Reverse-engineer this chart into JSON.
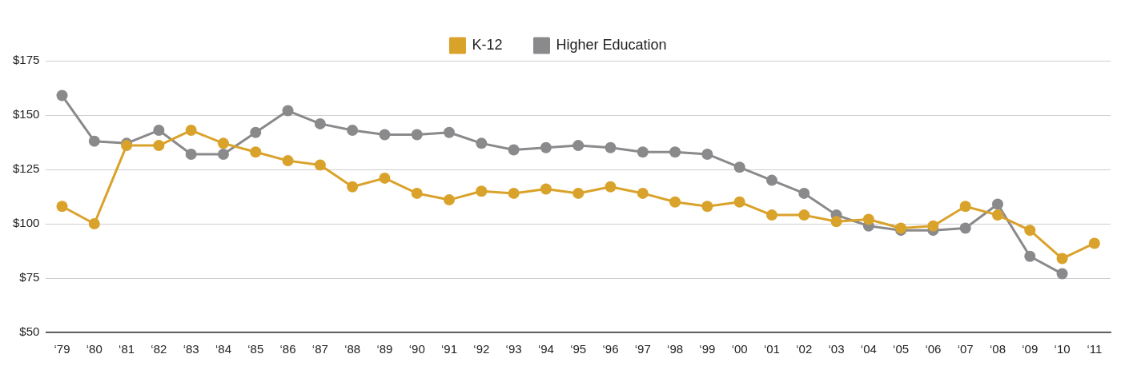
{
  "chart_data": {
    "type": "line",
    "categories": [
      "‘79",
      "‘80",
      "‘81",
      "‘82",
      "‘83",
      "‘84",
      "‘85",
      "‘86",
      "‘87",
      "‘88",
      "‘89",
      "‘90",
      "‘91",
      "‘92",
      "‘93",
      "‘94",
      "‘95",
      "‘96",
      "‘97",
      "‘98",
      "‘99",
      "‘00",
      "‘01",
      "‘02",
      "‘03",
      "‘04",
      "‘05",
      "‘06",
      "‘07",
      "‘08",
      "‘09",
      "‘10",
      "‘11"
    ],
    "series": [
      {
        "name": "K-12",
        "color": "#d9a22a",
        "values": [
          108,
          100,
          136,
          136,
          143,
          137,
          133,
          129,
          127,
          117,
          121,
          114,
          111,
          115,
          114,
          116,
          114,
          117,
          114,
          110,
          108,
          110,
          104,
          104,
          101,
          102,
          98,
          99,
          108,
          104,
          97,
          84,
          91
        ]
      },
      {
        "name": "Higher Education",
        "color": "#8a8a8c",
        "values": [
          159,
          138,
          137,
          143,
          132,
          132,
          142,
          152,
          146,
          143,
          141,
          141,
          142,
          137,
          134,
          135,
          136,
          135,
          133,
          133,
          132,
          126,
          120,
          114,
          104,
          99,
          97,
          97,
          98,
          109,
          85,
          77,
          null
        ]
      }
    ],
    "ylim": [
      50,
      175
    ],
    "yticks": [
      {
        "value": 50,
        "label": "$50"
      },
      {
        "value": 75,
        "label": "$75"
      },
      {
        "value": 100,
        "label": "$100"
      },
      {
        "value": 125,
        "label": "$125"
      },
      {
        "value": 150,
        "label": "$150"
      },
      {
        "value": 175,
        "label": "$175"
      }
    ],
    "grid": "y",
    "legend": "top",
    "marker": "circle",
    "line_style": "solid"
  }
}
